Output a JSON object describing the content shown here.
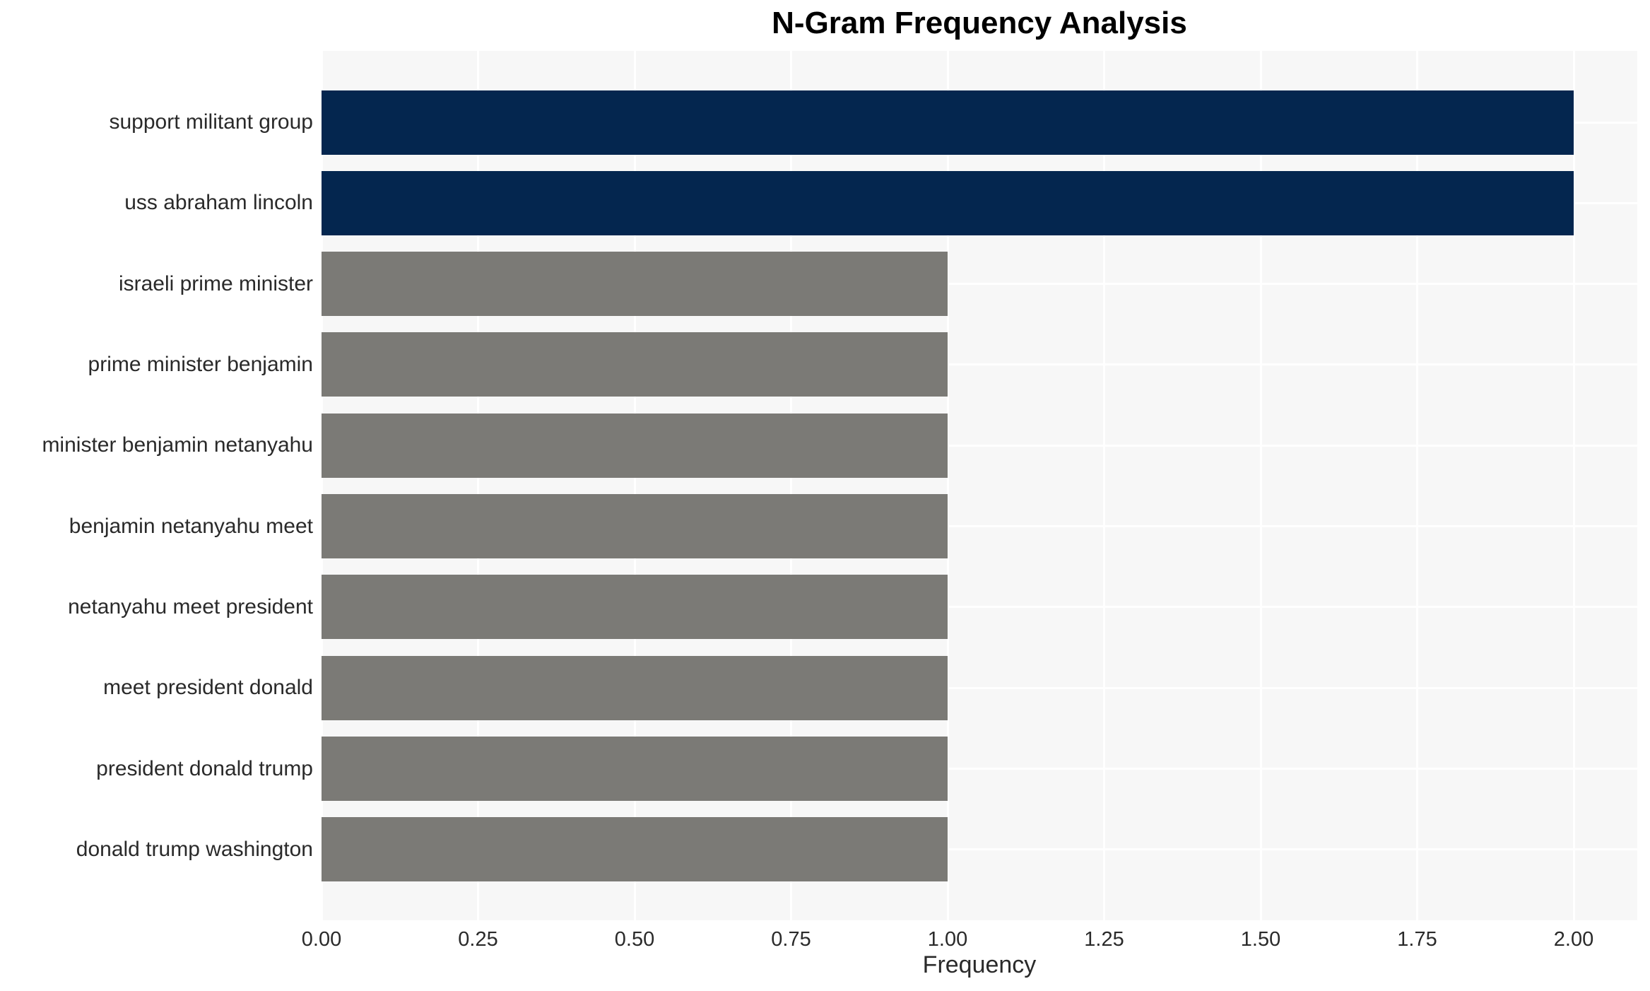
{
  "figure": {
    "title": "N-Gram Frequency Analysis"
  },
  "chart_data": {
    "type": "bar",
    "orientation": "horizontal",
    "title": "N-Gram Frequency Analysis",
    "xlabel": "Frequency",
    "ylabel": "",
    "categories": [
      "support militant group",
      "uss abraham lincoln",
      "israeli prime minister",
      "prime minister benjamin",
      "minister benjamin netanyahu",
      "benjamin netanyahu meet",
      "netanyahu meet president",
      "meet president donald",
      "president donald trump",
      "donald trump washington"
    ],
    "values": [
      2,
      2,
      1,
      1,
      1,
      1,
      1,
      1,
      1,
      1
    ],
    "bar_colors": [
      "#04264f",
      "#04264f",
      "#7b7a76",
      "#7b7a76",
      "#7b7a76",
      "#7b7a76",
      "#7b7a76",
      "#7b7a76",
      "#7b7a76",
      "#7b7a76"
    ],
    "xlim": [
      0,
      2.1
    ],
    "xtick_labels": [
      "0.00",
      "0.25",
      "0.50",
      "0.75",
      "1.00",
      "1.25",
      "1.50",
      "1.75",
      "2.00"
    ],
    "xtick_values": [
      0,
      0.25,
      0.5,
      0.75,
      1.0,
      1.25,
      1.5,
      1.75,
      2.0
    ],
    "grid": "on",
    "legend": "none",
    "colors": {
      "highlight_bar": "#04264f",
      "default_bar": "#7b7a76",
      "plot_background": "#f7f7f7",
      "gridline": "#ffffff",
      "tick_text": "#2a2a2a",
      "title_text": "#000000"
    }
  }
}
